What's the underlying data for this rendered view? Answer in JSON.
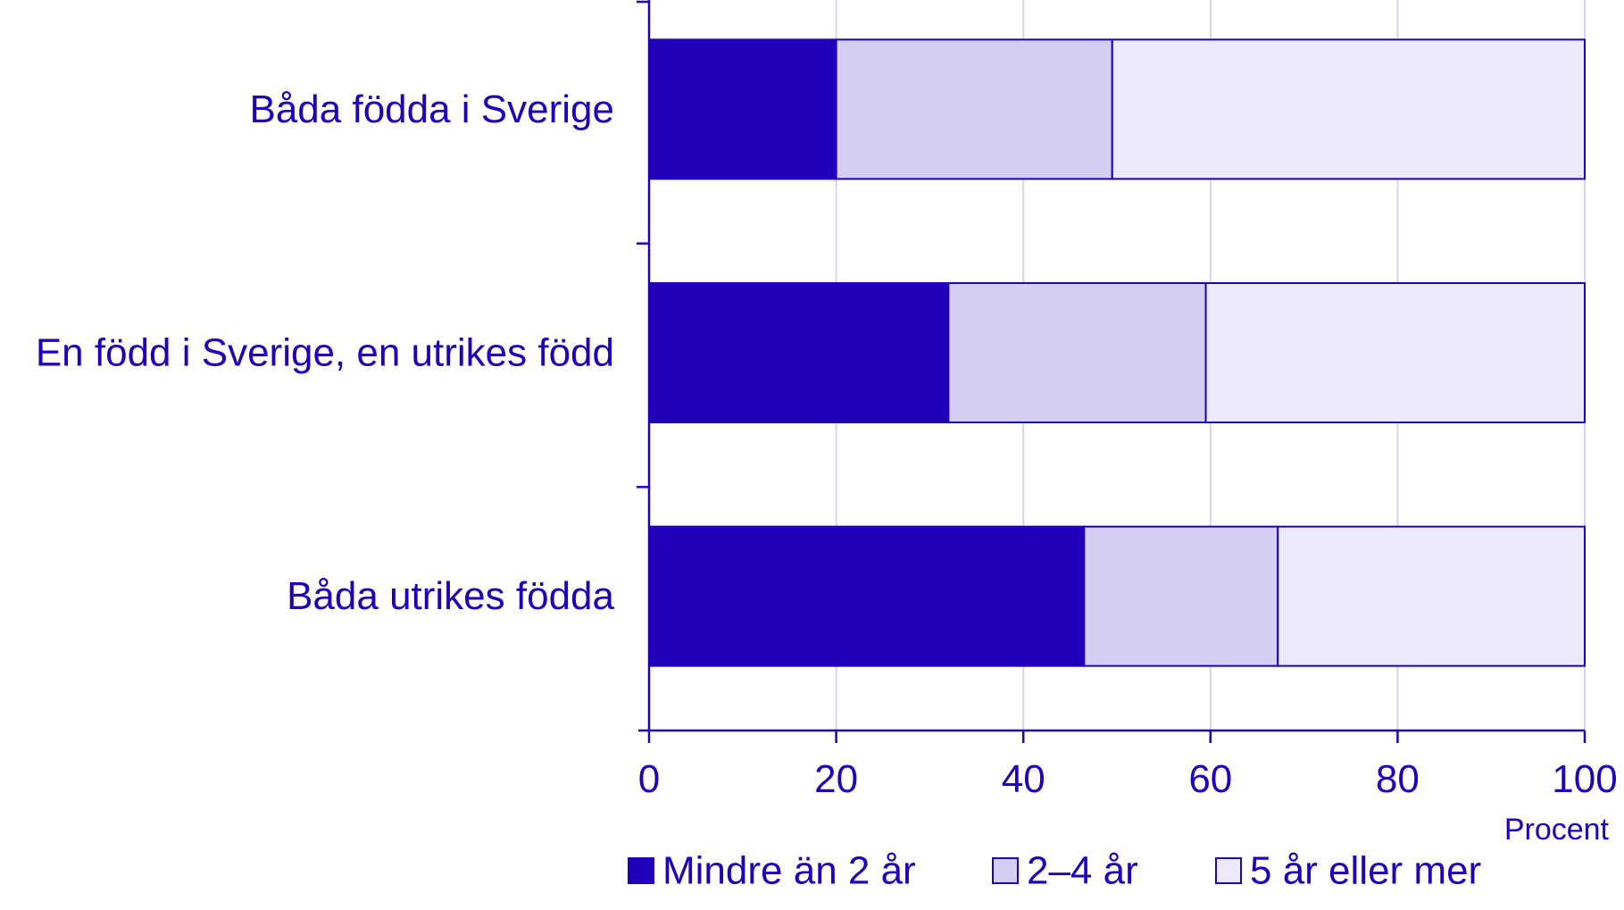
{
  "chart_data": {
    "type": "bar",
    "orientation": "horizontal",
    "stacked": true,
    "categories": [
      "Båda födda i Sverige",
      "En född i Sverige, en utrikes född",
      "Båda utrikes födda"
    ],
    "series": [
      {
        "name": "Mindre än 2 år",
        "values": [
          20,
          32,
          46.5
        ],
        "color": "#2200bb"
      },
      {
        "name": "2–4 år",
        "values": [
          29.5,
          27.5,
          20.7
        ],
        "color": "#d3cef2"
      },
      {
        "name": "5 år eller mer",
        "values": [
          50.5,
          40.5,
          32.8
        ],
        "color": "#ebe9fb"
      }
    ],
    "xlim": [
      0,
      100
    ],
    "xticks": [
      "0",
      "20",
      "40",
      "60",
      "80",
      "100"
    ],
    "xlabel": "Procent",
    "ylabel": "",
    "title": "",
    "grid": "vertical",
    "legend_position": "bottom",
    "colors": {
      "text": "#2200bb",
      "axis": "#2200bb",
      "grid": "#d6d3ee",
      "bar_border": "#2200bb"
    }
  }
}
